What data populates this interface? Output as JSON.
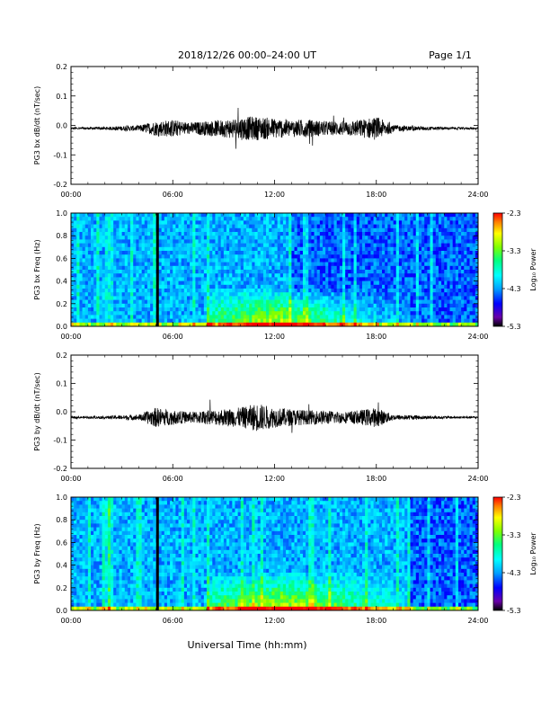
{
  "header": {
    "title": "2018/12/26  00:00–24:00 UT",
    "page": "Page 1/1"
  },
  "footer": {
    "xlabel": "Universal Time (hh:mm)"
  },
  "colors": {
    "trace": "#000000",
    "colorbar_stops": [
      "#000000",
      "#6a00a8",
      "#0000ff",
      "#00a0ff",
      "#00ffff",
      "#00ff80",
      "#80ff00",
      "#ffff00",
      "#ff8000",
      "#ff0000"
    ]
  },
  "chart_data": [
    {
      "type": "line",
      "ylabel": "PG3 bx dB/dt (nT/sec)",
      "ylim": [
        -0.2,
        0.2
      ],
      "xlim": [
        0,
        24
      ],
      "x_ticks": [
        "00:00",
        "06:00",
        "12:00",
        "18:00",
        "24:00"
      ],
      "y_ticks": [
        "0.2",
        "0.1",
        "0.0",
        "-0.1",
        "-0.2"
      ],
      "series": [
        {
          "x": [
            0,
            1,
            2,
            3,
            4,
            5,
            6,
            7,
            8,
            9,
            10,
            11,
            12,
            13,
            14,
            15,
            16,
            17,
            18,
            19,
            20,
            21,
            22,
            23,
            24
          ],
          "y_baseline": [
            -0.01,
            -0.01,
            -0.01,
            -0.01,
            -0.01,
            -0.01,
            -0.01,
            -0.01,
            -0.01,
            -0.01,
            -0.01,
            -0.01,
            -0.01,
            -0.01,
            -0.01,
            -0.01,
            -0.01,
            -0.01,
            -0.01,
            -0.01,
            -0.01,
            -0.01,
            -0.01,
            -0.01,
            -0.01
          ],
          "envelope": [
            0.004,
            0.004,
            0.005,
            0.008,
            0.01,
            0.025,
            0.03,
            0.02,
            0.025,
            0.03,
            0.04,
            0.04,
            0.035,
            0.03,
            0.03,
            0.025,
            0.025,
            0.03,
            0.04,
            0.012,
            0.008,
            0.006,
            0.005,
            0.004,
            0.004
          ]
        }
      ]
    },
    {
      "type": "heatmap",
      "ylabel": "PG3 bx Freq (Hz)",
      "ylim": [
        0.0,
        1.0
      ],
      "xlim": [
        0,
        24
      ],
      "x_ticks": [
        "00:00",
        "06:00",
        "12:00",
        "18:00",
        "24:00"
      ],
      "y_ticks": [
        "1.0",
        "0.8",
        "0.6",
        "0.4",
        "0.2",
        "0.0"
      ],
      "colorbar": {
        "label": "Log₁₀ Power",
        "range": [
          -5.3,
          -2.3
        ],
        "ticks": [
          "-2.3",
          "-3.3",
          "-4.3",
          "-5.3"
        ]
      },
      "data_gap_hour": 5.1,
      "enhanced_low_freq_hours": [
        8,
        20
      ],
      "quiet_after_hour": 13
    },
    {
      "type": "line",
      "ylabel": "PG3 by dB/dt (nT/sec)",
      "ylim": [
        -0.2,
        0.2
      ],
      "xlim": [
        0,
        24
      ],
      "x_ticks": [
        "00:00",
        "06:00",
        "12:00",
        "18:00",
        "24:00"
      ],
      "y_ticks": [
        "0.2",
        "0.1",
        "0.0",
        "-0.1",
        "-0.2"
      ],
      "series": [
        {
          "x": [
            0,
            1,
            2,
            3,
            4,
            5,
            6,
            7,
            8,
            9,
            10,
            11,
            12,
            13,
            14,
            15,
            16,
            17,
            18,
            19,
            20,
            21,
            22,
            23,
            24
          ],
          "y_baseline": [
            -0.02,
            -0.02,
            -0.02,
            -0.02,
            -0.02,
            -0.02,
            -0.02,
            -0.02,
            -0.02,
            -0.02,
            -0.02,
            -0.02,
            -0.02,
            -0.02,
            -0.02,
            -0.02,
            -0.02,
            -0.02,
            -0.02,
            -0.02,
            -0.02,
            -0.02,
            -0.02,
            -0.02,
            -0.02
          ],
          "envelope": [
            0.004,
            0.004,
            0.005,
            0.008,
            0.01,
            0.035,
            0.025,
            0.02,
            0.025,
            0.03,
            0.035,
            0.05,
            0.035,
            0.03,
            0.025,
            0.025,
            0.02,
            0.025,
            0.035,
            0.01,
            0.008,
            0.006,
            0.005,
            0.004,
            0.004
          ]
        }
      ]
    },
    {
      "type": "heatmap",
      "ylabel": "PG3 by Freq (Hz)",
      "ylim": [
        0.0,
        1.0
      ],
      "xlim": [
        0,
        24
      ],
      "x_ticks": [
        "00:00",
        "06:00",
        "12:00",
        "18:00",
        "24:00"
      ],
      "y_ticks": [
        "1.0",
        "0.8",
        "0.6",
        "0.4",
        "0.2",
        "0.0"
      ],
      "colorbar": {
        "label": "Log₁₀ Power",
        "range": [
          -5.3,
          -2.3
        ],
        "ticks": [
          "-2.3",
          "-3.3",
          "-4.3",
          "-5.3"
        ]
      },
      "data_gap_hour": 5.1,
      "enhanced_low_freq_hours": [
        8,
        20
      ],
      "quiet_after_hour": 20
    }
  ]
}
